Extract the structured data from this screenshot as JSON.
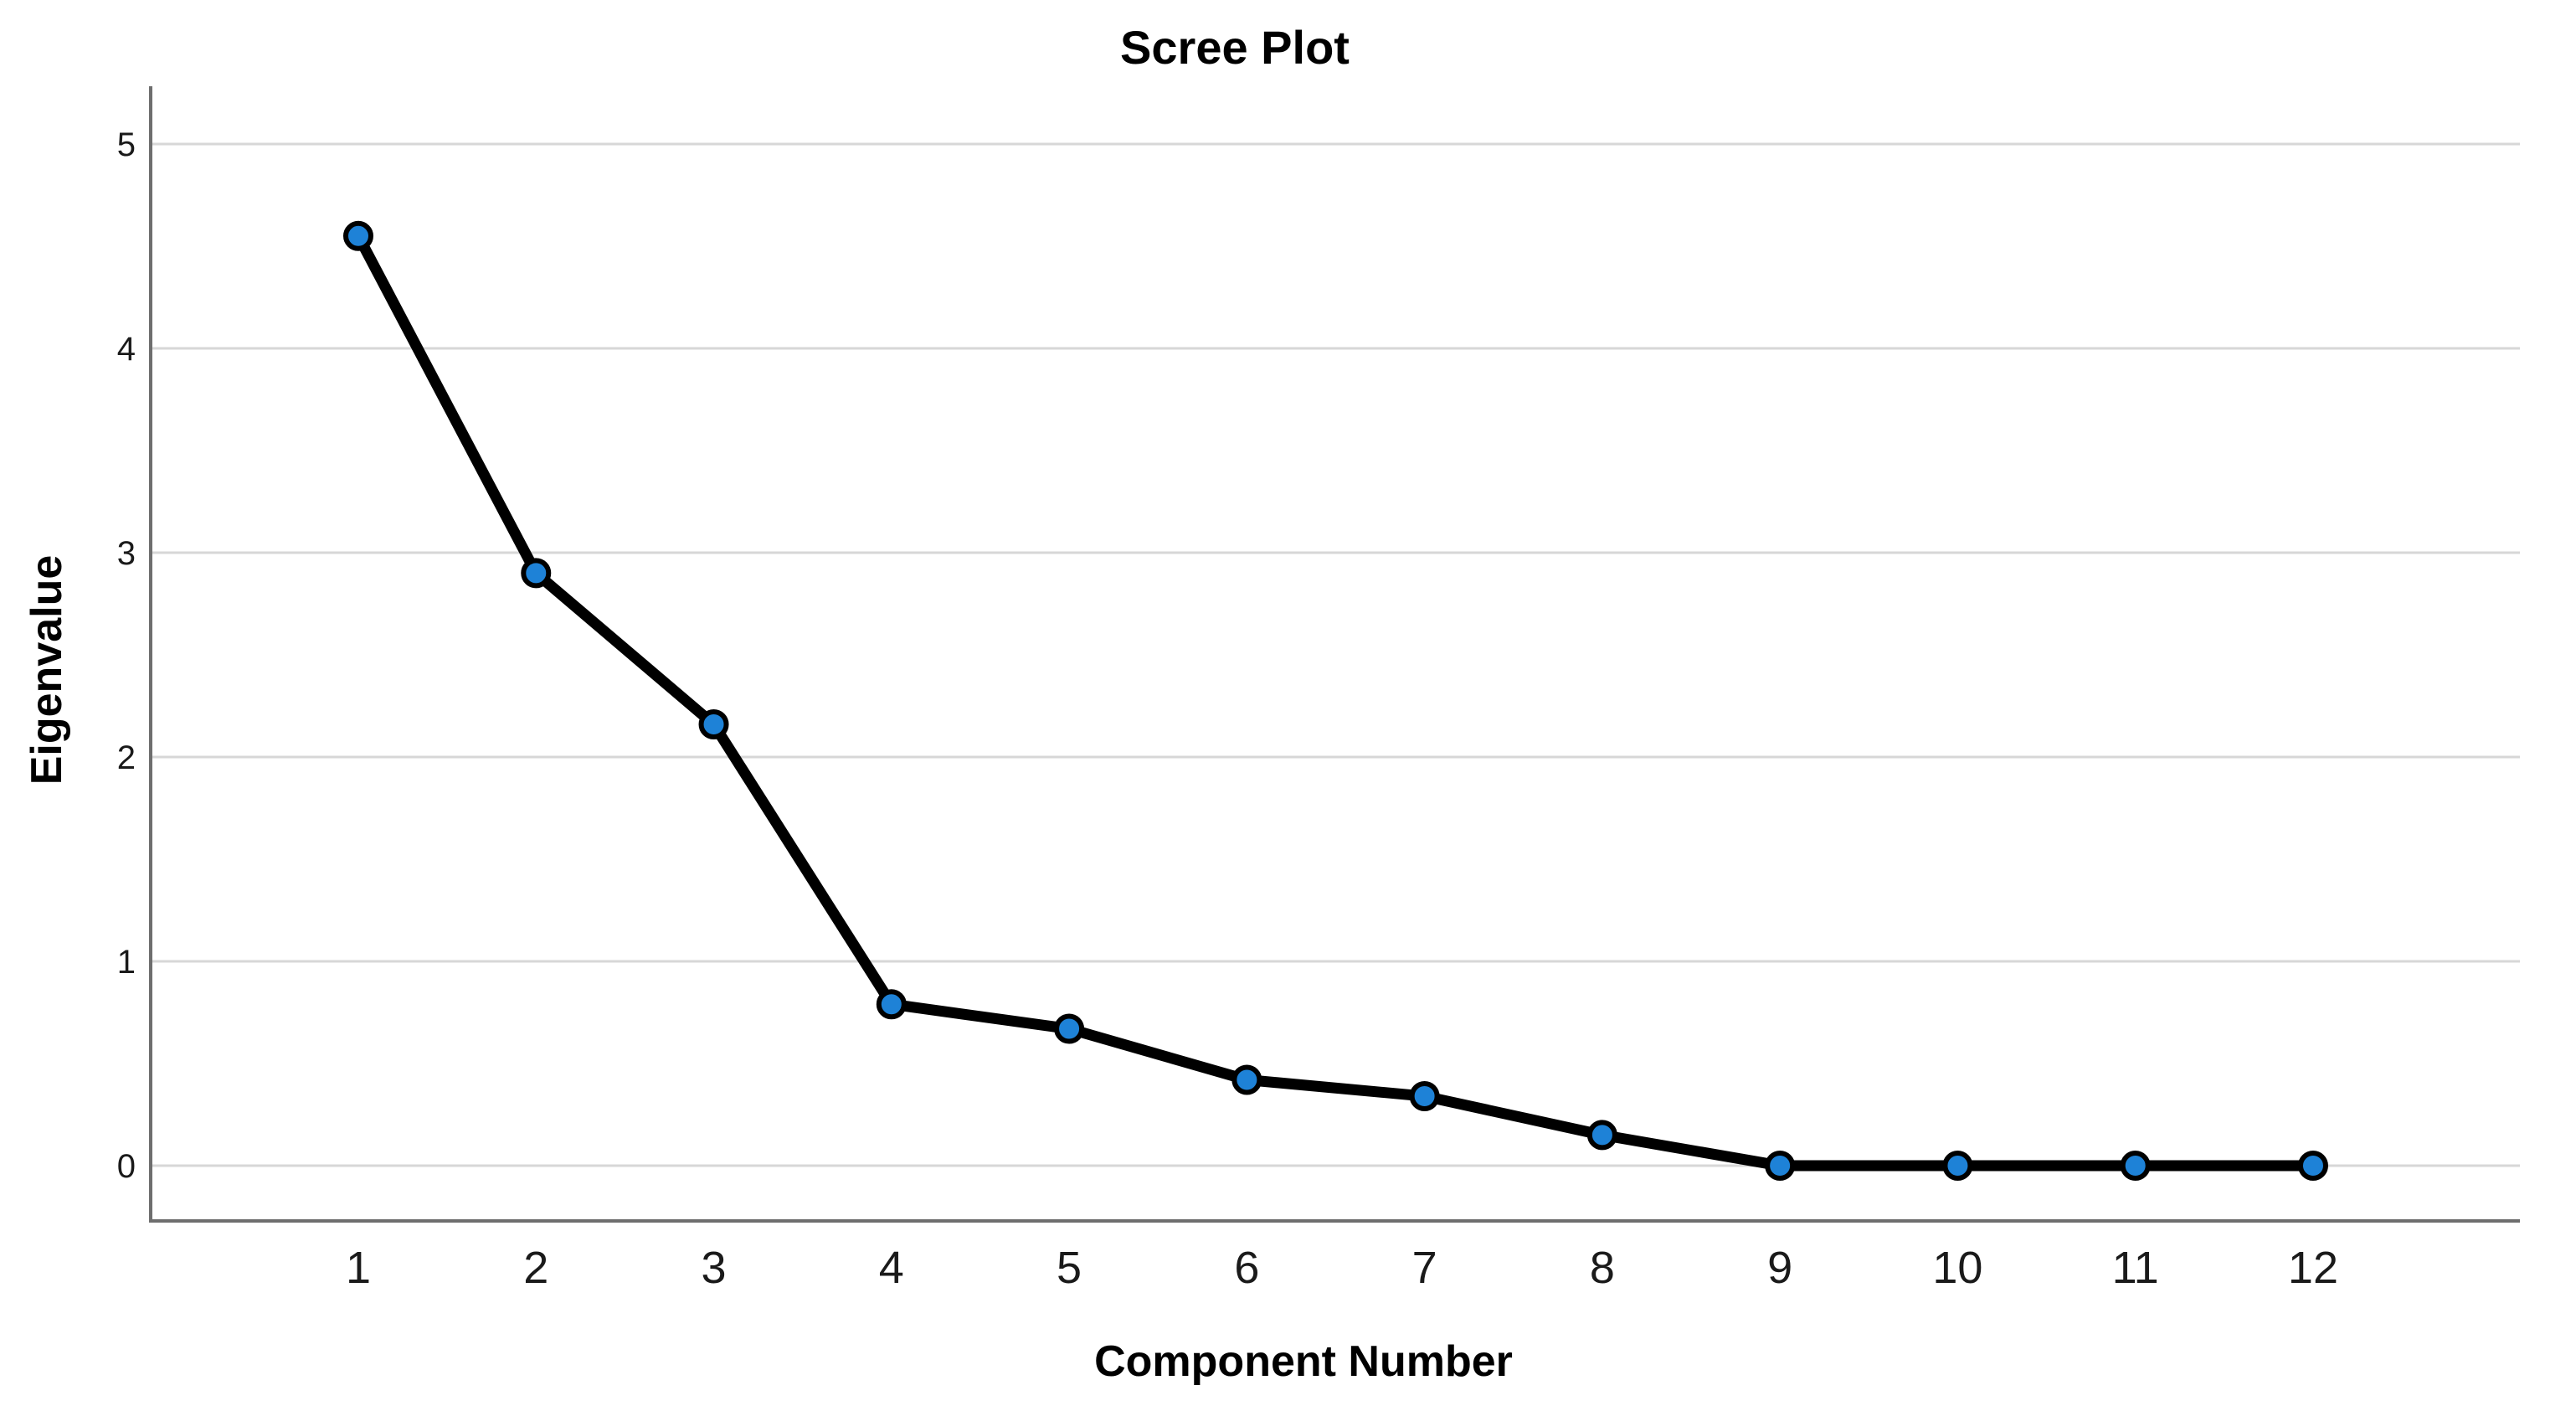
{
  "chart_data": {
    "type": "line",
    "title": "Scree Plot",
    "xlabel": "Component Number",
    "ylabel": "Eigenvalue",
    "categories": [
      "1",
      "2",
      "3",
      "4",
      "5",
      "6",
      "7",
      "8",
      "9",
      "10",
      "11",
      "12"
    ],
    "series": [
      {
        "name": "Eigenvalue",
        "values": [
          4.55,
          2.9,
          2.16,
          0.79,
          0.67,
          0.42,
          0.34,
          0.15,
          0,
          0,
          0,
          0
        ]
      }
    ],
    "ylim": [
      0,
      5
    ],
    "yticks": [
      0,
      1,
      2,
      3,
      4,
      5
    ],
    "grid": "horizontal",
    "legend": false,
    "marker": "circle",
    "colors": {
      "line": "#000000",
      "marker_fill": "#1e82d7",
      "marker_stroke": "#000000",
      "gridline": "#d7d7d7",
      "axis": "#6e6e6e",
      "tick_text": "#1a1a1a",
      "title_text": "#000000",
      "background": "#ffffff"
    }
  }
}
